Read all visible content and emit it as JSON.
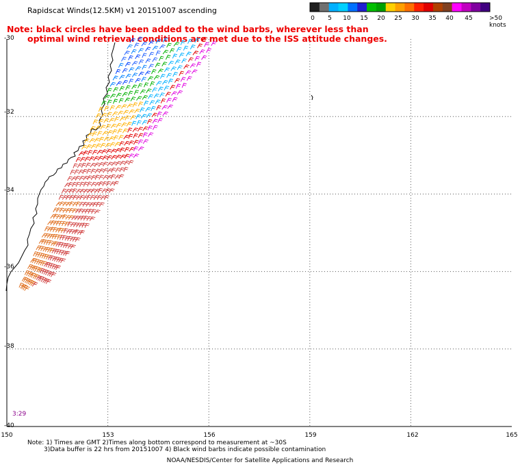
{
  "map": {
    "title": "Rapidscat Winds(12.5KM) v1 20151007 ascending",
    "note_line1": "Note: black circles have been added to the wind barbs, wherever less than",
    "note_line2": "optimal wind retrieval conditions are met due to the ISS attitude changes.",
    "timestamp": "3:29",
    "x_axis": {
      "range": [
        150,
        165
      ],
      "ticks": [
        "150",
        "153",
        "156",
        "159",
        "162",
        "165"
      ]
    },
    "y_axis": {
      "range": [
        -40,
        -30
      ],
      "ticks": [
        "-30",
        "-32",
        "-34",
        "-36",
        "-38",
        "-40"
      ]
    },
    "footnote_line1": "Note: 1) Times are GMT 2)Times along bottom correspond to measurement at ~30S",
    "footnote_line2": "3)Data buffer is 22 hrs from 20151007 4) Black wind barbs indicate possible contamination",
    "credit": "NOAA/NESDIS/Center for Satellite Applications and Research"
  },
  "legend": {
    "colors": [
      "#202020",
      "#707070",
      "#00b0ff",
      "#00d0ff",
      "#0070ff",
      "#2020d0",
      "#00c000",
      "#00a000",
      "#ffd000",
      "#ffa000",
      "#ff7000",
      "#ff2000",
      "#e00000",
      "#b04000",
      "#804020",
      "#ff00ff",
      "#c000c0",
      "#8000a0",
      "#400080"
    ],
    "labels": [
      "0",
      "5",
      "10",
      "15",
      "20",
      "25",
      "30",
      "35",
      "40",
      "45",
      ">50 knots"
    ]
  }
}
